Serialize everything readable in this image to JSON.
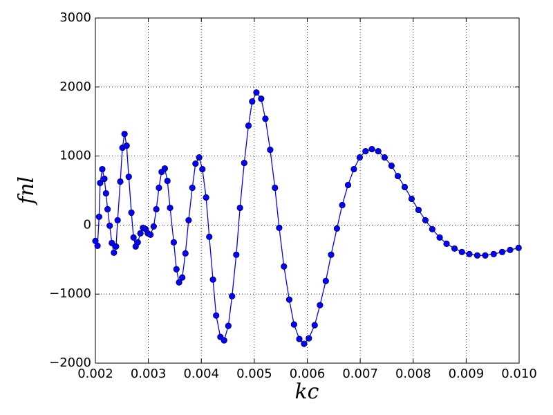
{
  "chart_data": {
    "type": "line",
    "x_label": "kc",
    "y_label": "fnl",
    "x": [
      0.002,
      0.00204,
      0.00207,
      0.00209,
      0.00213,
      0.00217,
      0.0022,
      0.00223,
      0.00227,
      0.00231,
      0.00235,
      0.00239,
      0.00242,
      0.00247,
      0.00251,
      0.00255,
      0.00259,
      0.00263,
      0.00268,
      0.00272,
      0.00276,
      0.0028,
      0.00285,
      0.0029,
      0.00295,
      0.00299,
      0.00304,
      0.0031,
      0.00315,
      0.0032,
      0.00325,
      0.00331,
      0.00336,
      0.00341,
      0.00348,
      0.00353,
      0.00358,
      0.00364,
      0.0037,
      0.00376,
      0.00383,
      0.00389,
      0.00396,
      0.00402,
      0.00409,
      0.00415,
      0.00422,
      0.00428,
      0.00436,
      0.00443,
      0.00451,
      0.00458,
      0.00466,
      0.00473,
      0.00481,
      0.00489,
      0.00496,
      0.00504,
      0.00513,
      0.00521,
      0.0053,
      0.00539,
      0.00547,
      0.00556,
      0.00566,
      0.00575,
      0.00585,
      0.00594,
      0.00603,
      0.00614,
      0.00624,
      0.00635,
      0.00645,
      0.00656,
      0.00666,
      0.00677,
      0.00688,
      0.00699,
      0.0071,
      0.00722,
      0.00734,
      0.00746,
      0.00759,
      0.00771,
      0.00784,
      0.00797,
      0.0081,
      0.00823,
      0.00836,
      0.0085,
      0.00863,
      0.00878,
      0.00892,
      0.00906,
      0.00921,
      0.00936,
      0.00952,
      0.00968,
      0.00983,
      0.00999
    ],
    "series": [
      {
        "color": "#0000ff",
        "marker_color": "#0000ff",
        "values": [
          -230,
          -300,
          120,
          610,
          810,
          670,
          460,
          230,
          -10,
          -260,
          -400,
          -310,
          70,
          630,
          1120,
          1320,
          1150,
          700,
          180,
          -180,
          -310,
          -250,
          -120,
          -40,
          -60,
          -120,
          -140,
          -20,
          230,
          540,
          770,
          820,
          640,
          250,
          -250,
          -640,
          -830,
          -760,
          -410,
          70,
          540,
          890,
          980,
          810,
          400,
          -170,
          -790,
          -1310,
          -1620,
          -1670,
          -1460,
          -1030,
          -430,
          250,
          900,
          1440,
          1790,
          1920,
          1830,
          1540,
          1090,
          540,
          -40,
          -600,
          -1080,
          -1440,
          -1650,
          -1720,
          -1640,
          -1450,
          -1160,
          -810,
          -430,
          -50,
          290,
          580,
          810,
          980,
          1070,
          1100,
          1070,
          980,
          860,
          710,
          550,
          380,
          220,
          70,
          -60,
          -180,
          -270,
          -340,
          -390,
          -420,
          -440,
          -440,
          -420,
          -390,
          -360,
          -330
        ]
      }
    ],
    "xlim": [
      0.002,
      0.01
    ],
    "xticks": [
      0.002,
      0.003,
      0.004,
      0.005,
      0.006,
      0.007,
      0.008,
      0.009,
      {
        "value": 0.01,
        "label": "0.010"
      }
    ],
    "ylim": [
      -2000,
      3000
    ],
    "yticks": [
      {
        "value": -2000,
        "label": "−2000"
      },
      {
        "value": -1000,
        "label": "−1000"
      },
      0,
      1000,
      2000,
      3000
    ],
    "grid": true
  }
}
